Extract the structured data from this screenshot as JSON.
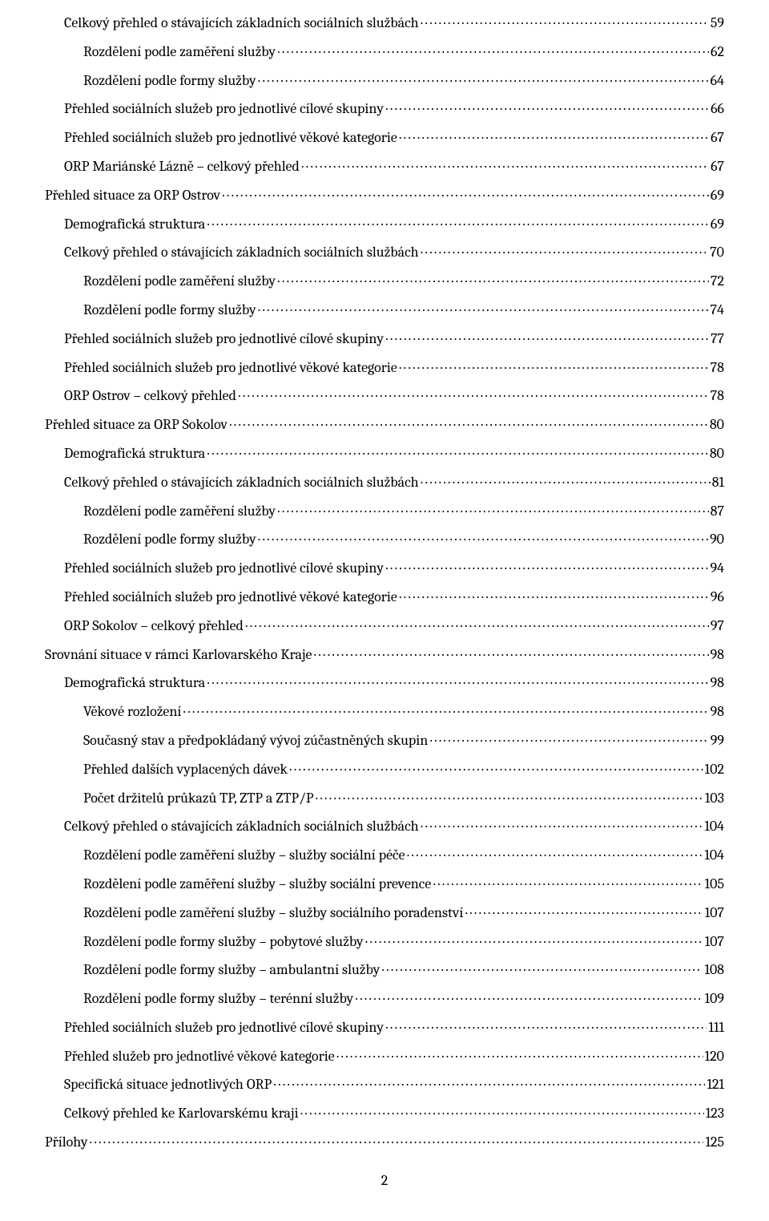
{
  "toc": [
    {
      "label": "Celkový přehled o stávajících základních sociálních službách",
      "page": "59",
      "indent": 1
    },
    {
      "label": "Rozdělení podle zaměření služby",
      "page": "62",
      "indent": 2
    },
    {
      "label": "Rozdělení podle formy služby",
      "page": "64",
      "indent": 2
    },
    {
      "label": "Přehled sociálních služeb pro jednotlivé cílové skupiny",
      "page": "66",
      "indent": 1
    },
    {
      "label": "Přehled sociálních služeb pro jednotlivé věkové kategorie",
      "page": "67",
      "indent": 1
    },
    {
      "label": "ORP Mariánské Lázně – celkový přehled",
      "page": "67",
      "indent": 1
    },
    {
      "label": "Přehled situace za ORP Ostrov",
      "page": "69",
      "indent": 0
    },
    {
      "label": "Demografická struktura",
      "page": "69",
      "indent": 1
    },
    {
      "label": "Celkový přehled o stávajících základních sociálních službách",
      "page": "70",
      "indent": 1
    },
    {
      "label": "Rozdělení podle zaměření služby",
      "page": "72",
      "indent": 2
    },
    {
      "label": "Rozdělení podle formy služby",
      "page": "74",
      "indent": 2
    },
    {
      "label": "Přehled sociálních služeb pro jednotlivé cílové skupiny",
      "page": "77",
      "indent": 1
    },
    {
      "label": "Přehled sociálních služeb pro jednotlivé věkové kategorie",
      "page": "78",
      "indent": 1
    },
    {
      "label": "ORP Ostrov – celkový přehled",
      "page": "78",
      "indent": 1
    },
    {
      "label": "Přehled situace za ORP Sokolov",
      "page": "80",
      "indent": 0
    },
    {
      "label": "Demografická struktura",
      "page": "80",
      "indent": 1
    },
    {
      "label": "Celkový přehled o stávajících základních sociálních službách",
      "page": "81",
      "indent": 1
    },
    {
      "label": "Rozdělení podle zaměření služby",
      "page": "87",
      "indent": 2
    },
    {
      "label": "Rozdělení podle formy služby",
      "page": "90",
      "indent": 2
    },
    {
      "label": "Přehled sociálních služeb pro jednotlivé cílové skupiny",
      "page": "94",
      "indent": 1
    },
    {
      "label": "Přehled sociálních služeb pro jednotlivé věkové kategorie",
      "page": "96",
      "indent": 1
    },
    {
      "label": "ORP Sokolov – celkový přehled",
      "page": "97",
      "indent": 1
    },
    {
      "label": "Srovnání situace v rámci Karlovarského Kraje",
      "page": "98",
      "indent": 0
    },
    {
      "label": "Demografická struktura",
      "page": "98",
      "indent": 1
    },
    {
      "label": "Věkové rozložení",
      "page": "98",
      "indent": 2
    },
    {
      "label": "Současný stav a předpokládaný vývoj zúčastněných skupin",
      "page": "99",
      "indent": 2
    },
    {
      "label": "Přehled dalších vyplacených dávek",
      "page": "102",
      "indent": 2
    },
    {
      "label": "Počet držitelů průkazů TP, ZTP a ZTP/P",
      "page": "103",
      "indent": 2
    },
    {
      "label": "Celkový přehled o stávajících základních sociálních službách",
      "page": "104",
      "indent": 1
    },
    {
      "label": "Rozdělení podle zaměření služby – služby sociální péče",
      "page": "104",
      "indent": 2
    },
    {
      "label": "Rozdělení podle zaměření služby – služby sociální prevence",
      "page": "105",
      "indent": 2
    },
    {
      "label": "Rozdělení podle zaměření služby – služby sociálního poradenství",
      "page": "107",
      "indent": 2
    },
    {
      "label": "Rozdělení podle formy služby – pobytové služby",
      "page": "107",
      "indent": 2
    },
    {
      "label": "Rozdělení podle formy služby – ambulantní služby",
      "page": "108",
      "indent": 2
    },
    {
      "label": "Rozdělení podle formy služby – terénní služby",
      "page": "109",
      "indent": 2
    },
    {
      "label": "Přehled sociálních služeb pro jednotlivé cílové skupiny",
      "page": "111",
      "indent": 1
    },
    {
      "label": "Přehled služeb pro jednotlivé věkové kategorie",
      "page": "120",
      "indent": 1
    },
    {
      "label": "Specifická situace jednotlivých ORP",
      "page": "121",
      "indent": 1
    },
    {
      "label": "Celkový přehled ke Karlovarskému kraji",
      "page": "123",
      "indent": 1
    },
    {
      "label": "Přílohy",
      "page": "125",
      "indent": 0
    }
  ],
  "pageNumber": "2"
}
